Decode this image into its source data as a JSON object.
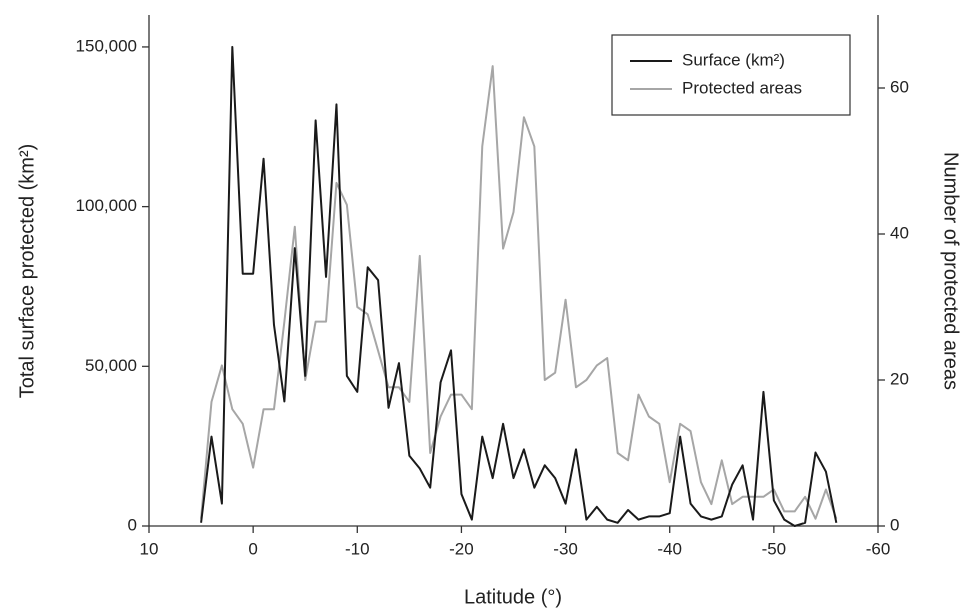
{
  "chart_data": {
    "type": "line",
    "x_label": "Latitude (°)",
    "y_label": "Total surface protected (km²)",
    "y2_label": "Number of protected areas",
    "x": [
      5,
      4,
      3,
      2,
      1,
      0,
      -1,
      -2,
      -3,
      -4,
      -5,
      -6,
      -7,
      -8,
      -9,
      -10,
      -11,
      -12,
      -13,
      -14,
      -15,
      -16,
      -17,
      -18,
      -19,
      -20,
      -21,
      -22,
      -23,
      -24,
      -25,
      -26,
      -27,
      -28,
      -29,
      -30,
      -31,
      -32,
      -33,
      -34,
      -35,
      -36,
      -37,
      -38,
      -39,
      -40,
      -41,
      -42,
      -43,
      -44,
      -45,
      -46,
      -47,
      -48,
      -49,
      -50,
      -51,
      -52,
      -53,
      -54,
      -55,
      -56
    ],
    "series": [
      {
        "name": "Surface (km²)",
        "color": "#1a1a1a",
        "values": [
          1000,
          28000,
          7000,
          150000,
          79000,
          79000,
          115000,
          63000,
          39000,
          87000,
          47000,
          127000,
          78000,
          132000,
          47000,
          42000,
          81000,
          77000,
          37000,
          51000,
          22000,
          18000,
          12000,
          45000,
          55000,
          10000,
          2000,
          28000,
          15000,
          32000,
          15000,
          24000,
          12000,
          19000,
          15000,
          7000,
          24000,
          2000,
          6000,
          2000,
          1000,
          5000,
          2000,
          3000,
          3000,
          4000,
          28000,
          7000,
          3000,
          2000,
          3000,
          13000,
          19000,
          2000,
          42000,
          8000,
          2000,
          0,
          1000,
          23000,
          17000,
          1000
        ]
      },
      {
        "name": "Protected areas",
        "color": "#a6a6a6",
        "axis": "y2",
        "values": [
          1,
          17,
          22,
          16,
          14,
          8,
          16,
          16,
          28,
          41,
          20,
          28,
          28,
          47,
          44,
          30,
          29,
          24,
          19,
          19,
          17,
          37,
          10,
          15,
          18,
          18,
          16,
          52,
          63,
          38,
          43,
          56,
          52,
          20,
          21,
          31,
          19,
          20,
          22,
          23,
          10,
          9,
          18,
          15,
          14,
          6,
          14,
          13,
          6,
          3,
          9,
          3,
          4,
          4,
          4,
          5,
          2,
          2,
          4,
          1,
          5,
          1
        ]
      }
    ],
    "xlim": [
      10,
      -60
    ],
    "xticks": [
      10,
      0,
      -10,
      -20,
      -30,
      -40,
      -50,
      -60
    ],
    "ylim": [
      0,
      160000
    ],
    "yticks": [
      0,
      {
        "value": 50000,
        "label": "50,000"
      },
      {
        "value": 100000,
        "label": "100,000"
      },
      {
        "value": 150000,
        "label": "150,000"
      }
    ],
    "y2lim": [
      0,
      70
    ],
    "y2ticks": [
      0,
      20,
      40,
      60
    ],
    "legend": "upper right"
  }
}
